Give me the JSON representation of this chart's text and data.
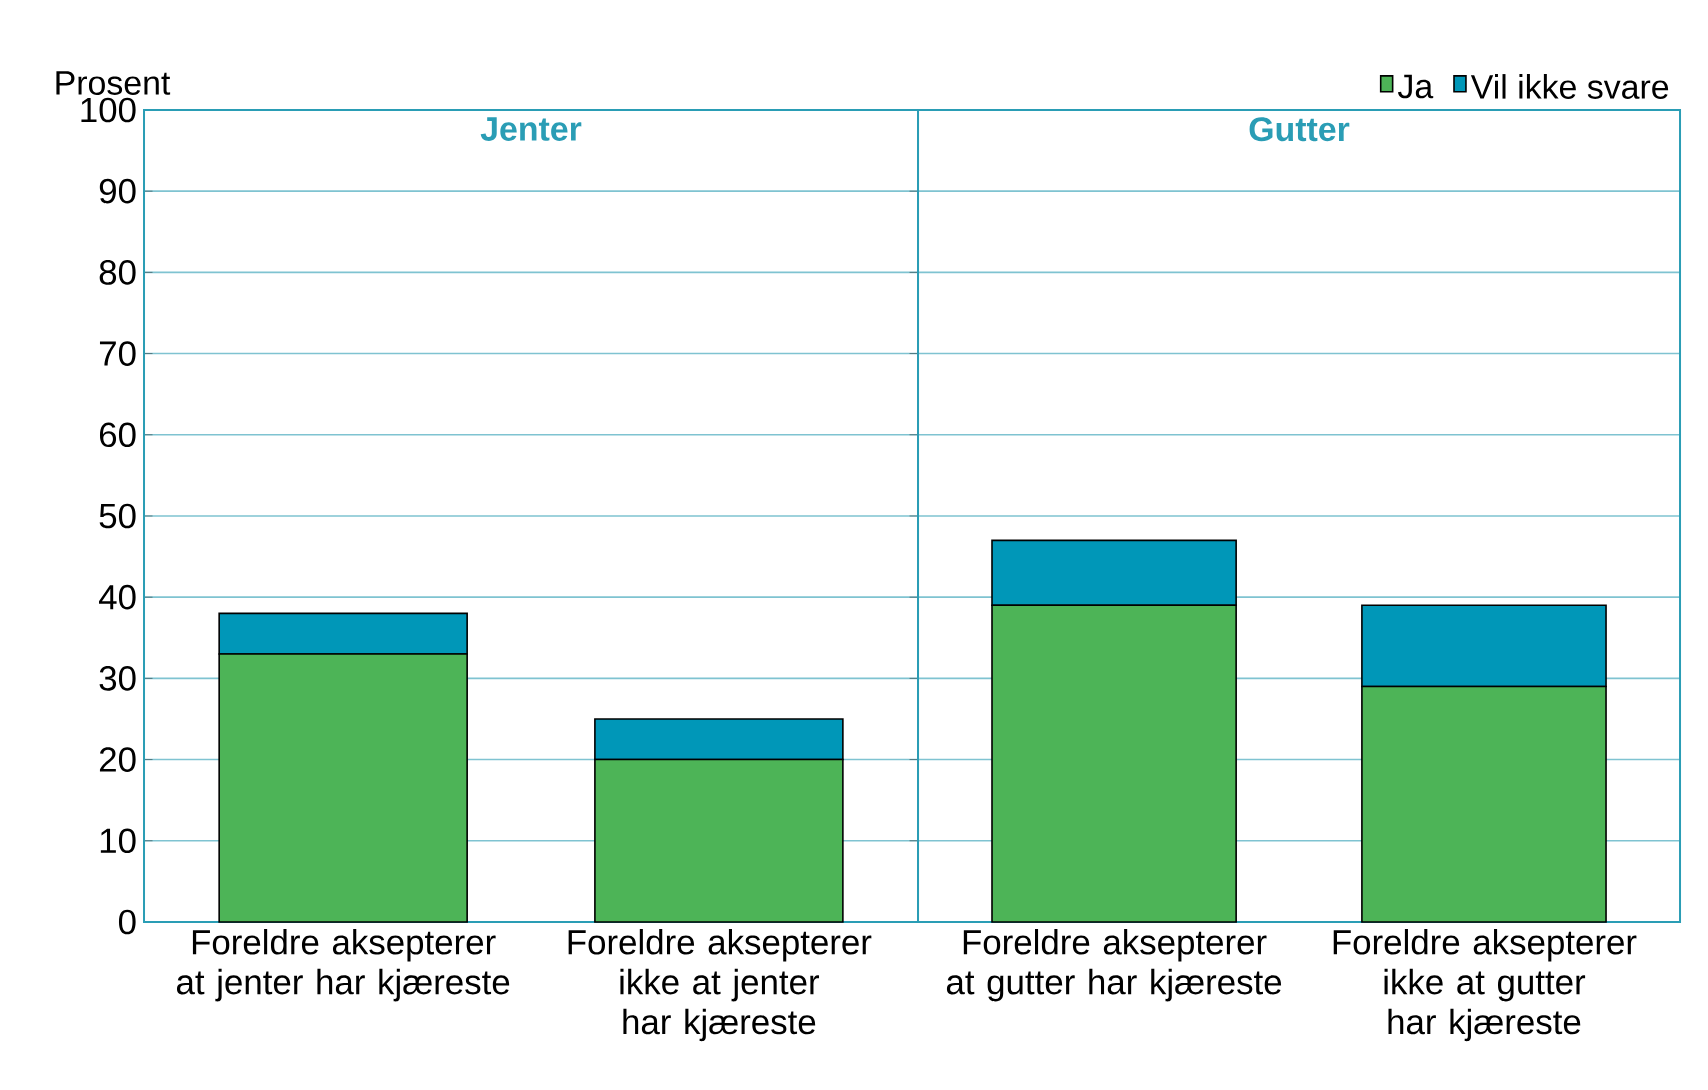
{
  "chart_data": [
    {
      "type": "bar",
      "stacked": true,
      "title": "Jenter",
      "ylabel": "Prosent",
      "categories": [
        "Foreldre aksepterer at jenter har kjæreste",
        "Foreldre aksepterer ikke at jenter har kjæreste"
      ],
      "ylim": [
        0,
        100
      ],
      "yticks": [
        0,
        10,
        20,
        30,
        40,
        50,
        60,
        70,
        80,
        90,
        100
      ],
      "grid": "y",
      "series": [
        {
          "color": "#4db457",
          "values": [
            33,
            20
          ]
        },
        {
          "color": "#0097b8",
          "values": [
            5,
            5
          ]
        }
      ]
    },
    {
      "type": "bar",
      "stacked": true,
      "title": "Gutter",
      "categories": [
        "Foreldre aksepterer at gutter har kjæreste",
        "Foreldre aksepterer ikke at gutter har kjæreste"
      ],
      "ylim": [
        0,
        100
      ],
      "yticks": [
        0,
        10,
        20,
        30,
        40,
        50,
        60,
        70,
        80,
        90,
        100
      ],
      "grid": "y",
      "legend": "top right",
      "tick_labels": "x",
      "series": [
        {
          "name": "Ja",
          "color": "#4db457",
          "values": [
            39,
            29
          ]
        },
        {
          "name": "Vil ikke svare",
          "color": "#0097b8",
          "values": [
            8,
            10
          ]
        }
      ]
    }
  ]
}
